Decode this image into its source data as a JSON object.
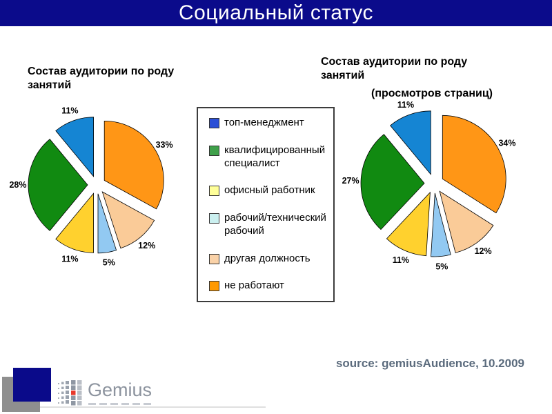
{
  "slide": {
    "title": "Социальный статус",
    "source_note": "source: gemiusAudience, 10.2009",
    "logo_text": "Gemius"
  },
  "colors": {
    "banner": "#0b0b8b",
    "source_text": "#5b6b7d",
    "logo_navy": "#0a0a8a",
    "logo_gray": "#8f8f8f",
    "logo_red": "#e8392b",
    "logo_text_gray": "#8c939e"
  },
  "legend": {
    "items": [
      {
        "label": "топ-менеджмент",
        "color": "#2b4fd6"
      },
      {
        "label": "квалифицированный специалист",
        "color": "#3fa04a"
      },
      {
        "label": "офисный работник",
        "color": "#ffff99"
      },
      {
        "label": "рабочий/технический рабочий",
        "color": "#cbf0f0"
      },
      {
        "label": "другая должность",
        "color": "#fad2a8"
      },
      {
        "label": "не работают",
        "color": "#ff9900"
      }
    ]
  },
  "chart_data": [
    {
      "type": "pie",
      "title": "Состав аудитории по роду занятий",
      "subtitle": "",
      "exploded": true,
      "start": "12 o'clock",
      "direction": "counterclockwise",
      "legend_position": "shared center box",
      "categories": [
        "топ-менеджмент",
        "квалифицированный специалист",
        "офисный работник",
        "рабочий/технический рабочий",
        "другая должность",
        "не работают"
      ],
      "values": [
        11,
        28,
        11,
        5,
        12,
        33
      ],
      "labels": [
        "11%",
        "28%",
        "11%",
        "5%",
        "12%",
        "33%"
      ],
      "colors": [
        "#1585d3",
        "#118a11",
        "#ffd12e",
        "#92c9f2",
        "#facb98",
        "#ff9616"
      ]
    },
    {
      "type": "pie",
      "title": "Состав аудитории по роду занятий",
      "subtitle": "(просмотров страниц)",
      "exploded": true,
      "start": "12 o'clock",
      "direction": "counterclockwise",
      "legend_position": "shared center box",
      "categories": [
        "топ-менеджмент",
        "квалифицированный специалист",
        "офисный работник",
        "рабочий/технический рабочий",
        "другая должность",
        "не работают"
      ],
      "values": [
        11,
        27,
        11,
        5,
        12,
        34
      ],
      "labels": [
        "11%",
        "27%",
        "11%",
        "5%",
        "12%",
        "34%"
      ],
      "colors": [
        "#1585d3",
        "#118a11",
        "#ffd12e",
        "#92c9f2",
        "#facb98",
        "#ff9616"
      ]
    }
  ]
}
